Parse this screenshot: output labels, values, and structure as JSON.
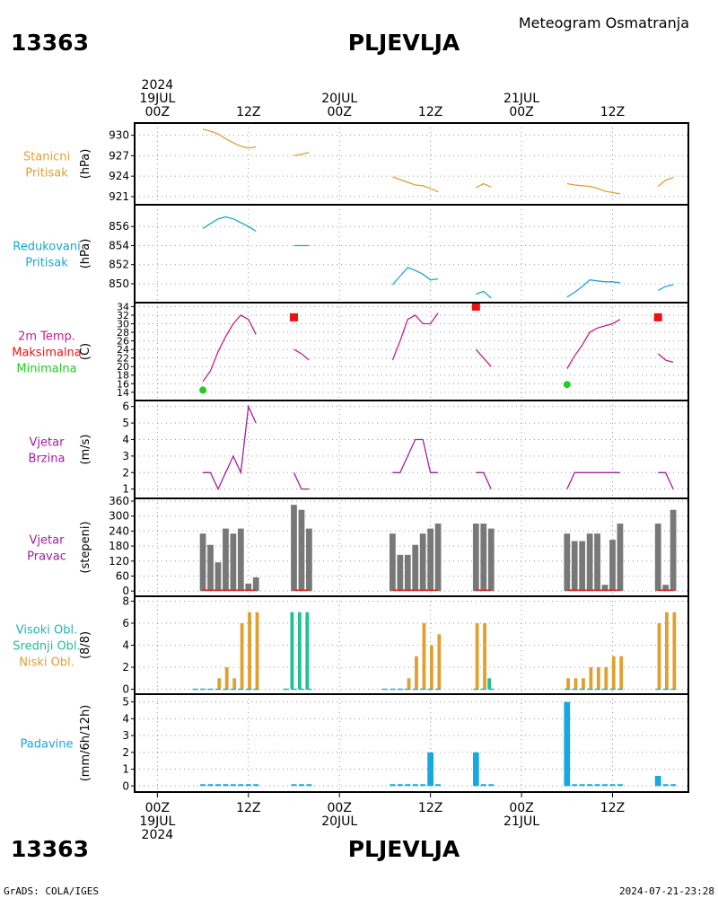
{
  "header": {
    "station_id": "13363",
    "station_name": "PLJEVLJA",
    "subtitle": "Meteogram Osmatranja",
    "footer_left": "GrADS: COLA/IGES",
    "footer_right": "2024-07-21-23:28"
  },
  "colors": {
    "pressure": "#e0a030",
    "reduced": "#1aa7d0",
    "temp": "#c0208f",
    "tmax": "#ee1111",
    "tmin": "#22cc22",
    "wind": "#a020a0",
    "dir_bar": "#787878",
    "dir_line": "#dd2222",
    "cloud_high": "#20b0c0",
    "cloud_mid": "#20c090",
    "cloud_low": "#e0a030",
    "precip": "#18a8e0"
  },
  "time_axis": {
    "top": [
      {
        "t": 0,
        "lines": [
          "2024",
          "19JUL",
          "00Z"
        ]
      },
      {
        "t": 12,
        "lines": [
          "12Z"
        ]
      },
      {
        "t": 24,
        "lines": [
          "20JUL",
          "00Z"
        ]
      },
      {
        "t": 36,
        "lines": [
          "12Z"
        ]
      },
      {
        "t": 48,
        "lines": [
          "21JUL",
          "00Z"
        ]
      },
      {
        "t": 60,
        "lines": [
          "12Z"
        ]
      }
    ],
    "bottom": [
      {
        "t": 0,
        "lines": [
          "00Z",
          "19JUL",
          "2024"
        ]
      },
      {
        "t": 12,
        "lines": [
          "12Z"
        ]
      },
      {
        "t": 24,
        "lines": [
          "00Z",
          "20JUL"
        ]
      },
      {
        "t": 36,
        "lines": [
          "12Z"
        ]
      },
      {
        "t": 48,
        "lines": [
          "00Z",
          "21JUL"
        ]
      },
      {
        "t": 60,
        "lines": [
          "12Z"
        ]
      }
    ],
    "xlim": [
      -3,
      70
    ]
  },
  "chart_data": [
    {
      "type": "line",
      "labels": [
        "Stanicni",
        "Pritisak"
      ],
      "label_colors": [
        "pressure",
        "pressure"
      ],
      "ylabel": "(hPa)",
      "ylim": [
        920.2,
        931.4
      ],
      "yticks": [
        930,
        927,
        924,
        921
      ],
      "series": [
        {
          "color": "pressure",
          "segments": [
            [
              [
                6,
                930.9
              ],
              [
                7,
                930.6
              ],
              [
                8,
                930.2
              ],
              [
                9,
                929.5
              ],
              [
                10,
                928.9
              ],
              [
                11,
                928.4
              ],
              [
                12,
                928.1
              ],
              [
                13,
                928.3
              ]
            ],
            [
              [
                18,
                927.0
              ],
              [
                19,
                927.2
              ],
              [
                20,
                927.5
              ]
            ],
            [
              [
                31,
                923.9
              ],
              [
                32,
                923.5
              ],
              [
                33,
                923.1
              ],
              [
                34,
                922.7
              ],
              [
                35,
                922.6
              ],
              [
                36,
                922.2
              ],
              [
                37,
                921.7
              ]
            ],
            [
              [
                42,
                922.3
              ],
              [
                43,
                922.9
              ],
              [
                44,
                922.4
              ]
            ],
            [
              [
                54,
                922.9
              ],
              [
                55,
                922.7
              ],
              [
                56,
                922.6
              ],
              [
                57,
                922.5
              ],
              [
                58,
                922.2
              ],
              [
                59,
                921.8
              ],
              [
                60,
                921.6
              ],
              [
                61,
                921.4
              ]
            ],
            [
              [
                66,
                922.5
              ],
              [
                67,
                923.4
              ],
              [
                68,
                923.8
              ]
            ]
          ]
        }
      ]
    },
    {
      "type": "line",
      "labels": [
        "Redukovani",
        "Pritisak"
      ],
      "label_colors": [
        "reduced",
        "reduced"
      ],
      "ylabel": "(hPa)",
      "ylim": [
        848.3,
        858.0
      ],
      "yticks": [
        856,
        854,
        852,
        850
      ],
      "series": [
        {
          "color": "reduced",
          "segments": [
            [
              [
                6,
                855.8
              ],
              [
                7,
                856.3
              ],
              [
                8,
                856.8
              ],
              [
                9,
                857.0
              ],
              [
                10,
                856.8
              ],
              [
                11,
                856.4
              ],
              [
                12,
                856.0
              ],
              [
                13,
                855.5
              ]
            ],
            [
              [
                18,
                854.0
              ],
              [
                19,
                854.0
              ],
              [
                20,
                854.0
              ]
            ],
            [
              [
                31,
                849.9
              ],
              [
                32,
                850.8
              ],
              [
                33,
                851.7
              ],
              [
                34,
                851.4
              ],
              [
                35,
                851.0
              ],
              [
                36,
                850.4
              ],
              [
                37,
                850.5
              ]
            ],
            [
              [
                42,
                848.9
              ],
              [
                43,
                849.2
              ],
              [
                44,
                848.5
              ]
            ],
            [
              [
                54,
                848.6
              ],
              [
                55,
                849.1
              ],
              [
                56,
                849.7
              ],
              [
                57,
                850.4
              ],
              [
                58,
                850.3
              ],
              [
                59,
                850.2
              ],
              [
                60,
                850.2
              ],
              [
                61,
                850.1
              ]
            ],
            [
              [
                66,
                849.3
              ],
              [
                67,
                849.7
              ],
              [
                68,
                849.9
              ]
            ]
          ]
        }
      ]
    },
    {
      "type": "line",
      "labels": [
        "2m Temp.",
        "Maksimalna",
        "Minimalna"
      ],
      "label_colors": [
        "temp",
        "tmax",
        "tmin"
      ],
      "ylabel": "(C)",
      "ylim": [
        12.7,
        34.3
      ],
      "yticks": [
        34,
        32,
        30,
        28,
        26,
        24,
        22,
        20,
        18,
        16,
        14
      ],
      "series": [
        {
          "color": "temp",
          "segments": [
            [
              [
                6,
                16.5
              ],
              [
                7,
                19.0
              ],
              [
                8,
                23.5
              ],
              [
                9,
                27.0
              ],
              [
                10,
                30.0
              ],
              [
                11,
                32.0
              ],
              [
                12,
                31.0
              ],
              [
                13,
                27.5
              ]
            ],
            [
              [
                18,
                24.0
              ],
              [
                19,
                23.0
              ],
              [
                20,
                21.5
              ]
            ],
            [
              [
                31,
                21.5
              ],
              [
                32,
                26.0
              ],
              [
                33,
                31.0
              ],
              [
                34,
                32.0
              ],
              [
                35,
                30.0
              ],
              [
                36,
                30.0
              ],
              [
                37,
                32.5
              ]
            ],
            [
              [
                42,
                24.0
              ],
              [
                43,
                22.0
              ],
              [
                44,
                20.0
              ]
            ],
            [
              [
                54,
                19.5
              ],
              [
                55,
                22.5
              ],
              [
                56,
                25.0
              ],
              [
                57,
                28.0
              ],
              [
                58,
                29.0
              ],
              [
                59,
                29.5
              ],
              [
                60,
                30.0
              ],
              [
                61,
                31.0
              ]
            ],
            [
              [
                66,
                23.0
              ],
              [
                67,
                21.5
              ],
              [
                68,
                21.0
              ]
            ]
          ]
        }
      ],
      "markers": [
        {
          "shape": "square",
          "color": "tmax",
          "points": [
            [
              18,
              31.5
            ],
            [
              42,
              34.0
            ],
            [
              66,
              31.5
            ]
          ]
        },
        {
          "shape": "circle",
          "color": "tmin",
          "points": [
            [
              6,
              14.5
            ],
            [
              54,
              15.8
            ]
          ]
        }
      ]
    },
    {
      "type": "line",
      "labels": [
        "Vjetar",
        "Brzina"
      ],
      "label_colors": [
        "wind",
        "wind"
      ],
      "ylabel": "(m/s)",
      "ylim": [
        0.6,
        6.2
      ],
      "yticks": [
        6,
        5,
        4,
        3,
        2,
        1
      ],
      "series": [
        {
          "color": "wind",
          "segments": [
            [
              [
                6,
                2
              ],
              [
                7,
                2
              ],
              [
                8,
                1
              ],
              [
                9,
                2
              ],
              [
                10,
                3
              ],
              [
                11,
                2
              ],
              [
                12,
                6
              ],
              [
                13,
                5
              ]
            ],
            [
              [
                18,
                2
              ],
              [
                19,
                1
              ],
              [
                20,
                1
              ]
            ],
            [
              [
                31,
                2
              ],
              [
                32,
                2
              ],
              [
                33,
                3
              ],
              [
                34,
                4
              ],
              [
                35,
                4
              ],
              [
                36,
                2
              ],
              [
                37,
                2
              ]
            ],
            [
              [
                42,
                2
              ],
              [
                43,
                2
              ],
              [
                44,
                1
              ]
            ],
            [
              [
                54,
                1
              ],
              [
                55,
                2
              ],
              [
                56,
                2
              ],
              [
                57,
                2
              ],
              [
                58,
                2
              ],
              [
                59,
                2
              ],
              [
                60,
                2
              ],
              [
                61,
                2
              ]
            ],
            [
              [
                66,
                2
              ],
              [
                67,
                2
              ],
              [
                68,
                1
              ]
            ]
          ]
        }
      ]
    },
    {
      "type": "bar",
      "labels": [
        "Vjetar",
        "Pravac"
      ],
      "label_colors": [
        "wind",
        "wind"
      ],
      "ylabel": "(stepeni)",
      "ylim": [
        -10,
        360
      ],
      "yticks": [
        360,
        300,
        240,
        180,
        120,
        60,
        0
      ],
      "bar_width": 0.8,
      "series": [
        {
          "color": "dir_bar",
          "points": [
            [
              6,
              230
            ],
            [
              7,
              185
            ],
            [
              8,
              115
            ],
            [
              9,
              250
            ],
            [
              10,
              230
            ],
            [
              11,
              250
            ],
            [
              12,
              30
            ],
            [
              13,
              55
            ],
            [
              18,
              345
            ],
            [
              19,
              325
            ],
            [
              20,
              250
            ],
            [
              31,
              230
            ],
            [
              32,
              145
            ],
            [
              33,
              145
            ],
            [
              34,
              185
            ],
            [
              35,
              230
            ],
            [
              36,
              250
            ],
            [
              37,
              270
            ],
            [
              42,
              270
            ],
            [
              43,
              270
            ],
            [
              44,
              250
            ],
            [
              54,
              230
            ],
            [
              55,
              200
            ],
            [
              56,
              200
            ],
            [
              57,
              230
            ],
            [
              58,
              230
            ],
            [
              59,
              25
            ],
            [
              60,
              205
            ],
            [
              61,
              270
            ],
            [
              66,
              270
            ],
            [
              67,
              25
            ],
            [
              68,
              325
            ]
          ]
        }
      ],
      "baseline_color": "dir_line"
    },
    {
      "type": "bar",
      "labels": [
        "Visoki Obl.",
        "Srednji Obl.",
        "Niski Obl."
      ],
      "label_colors": [
        "cloud_high",
        "cloud_mid",
        "cloud_low"
      ],
      "ylabel": "(8/8)",
      "ylim": [
        -0.2,
        8.2
      ],
      "yticks": [
        8,
        6,
        4,
        2,
        0
      ],
      "bar_width": 0.45,
      "series": [
        {
          "color": "cloud_mid",
          "offset": -0.25,
          "points": [
            [
              18,
              7
            ],
            [
              19,
              7
            ],
            [
              20,
              7
            ],
            [
              44,
              1
            ]
          ]
        },
        {
          "color": "cloud_low",
          "offset": 0.15,
          "points": [
            [
              8,
              1
            ],
            [
              9,
              2
            ],
            [
              10,
              1
            ],
            [
              11,
              6
            ],
            [
              12,
              7
            ],
            [
              13,
              7
            ],
            [
              33,
              1
            ],
            [
              34,
              3
            ],
            [
              35,
              6
            ],
            [
              36,
              4
            ],
            [
              37,
              5
            ],
            [
              42,
              6
            ],
            [
              43,
              6
            ],
            [
              54,
              1
            ],
            [
              55,
              1
            ],
            [
              56,
              1
            ],
            [
              57,
              2
            ],
            [
              58,
              2
            ],
            [
              59,
              2
            ],
            [
              60,
              3
            ],
            [
              61,
              3
            ],
            [
              66,
              6
            ],
            [
              67,
              7
            ],
            [
              68,
              7
            ]
          ]
        }
      ]
    },
    {
      "type": "bar",
      "labels": [
        "Padavine"
      ],
      "label_colors": [
        "precip"
      ],
      "ylabel": "(mm/6h/12h)",
      "ylim": [
        -0.2,
        5.3
      ],
      "yticks": [
        5,
        4,
        3,
        2,
        1,
        0
      ],
      "bar_width": 0.8,
      "series": [
        {
          "color": "precip",
          "points": [
            [
              36,
              2
            ],
            [
              42,
              2
            ],
            [
              54,
              5
            ],
            [
              66,
              0.6
            ]
          ]
        }
      ]
    }
  ]
}
